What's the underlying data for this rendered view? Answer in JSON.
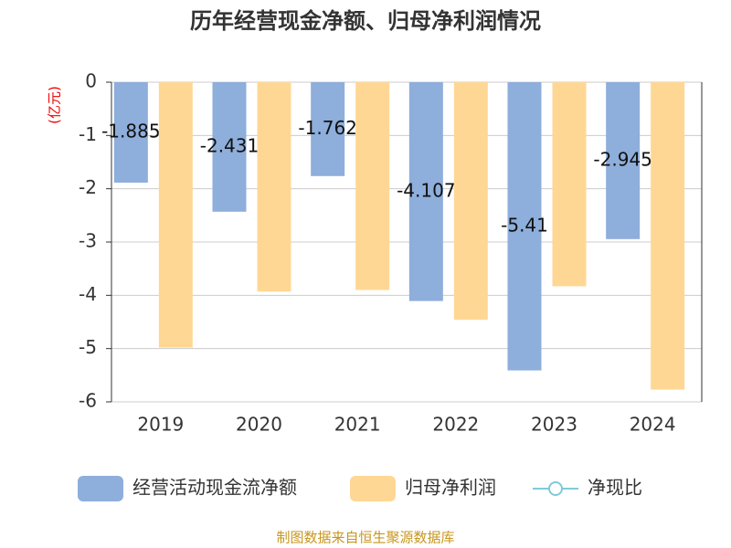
{
  "chart_data": {
    "type": "bar",
    "title": "历年经营现金净额、归母净利润情况",
    "y_label": "(亿元)",
    "source": "制图数据来自恒生聚源数据库",
    "categories": [
      "2019",
      "2020",
      "2021",
      "2022",
      "2023",
      "2024"
    ],
    "series": [
      {
        "name": "经营活动现金流净额",
        "color": "#8eaedb",
        "values": [
          -1.885,
          -2.431,
          -1.762,
          -4.107,
          -5.41,
          -2.945
        ],
        "data_labels": true
      },
      {
        "name": "归母净利润",
        "color": "#ffd794",
        "values": [
          -4.98,
          -3.93,
          -3.9,
          -4.46,
          -3.83,
          -5.77
        ]
      },
      {
        "name": "净现比",
        "color": "#7ecbd8",
        "type": "line",
        "values": [
          null,
          null,
          null,
          null,
          null,
          null
        ]
      }
    ],
    "ylim": [
      -6,
      0
    ],
    "yticks": [
      0,
      -1,
      -2,
      -3,
      -4,
      -5,
      -6
    ],
    "grid": true
  }
}
